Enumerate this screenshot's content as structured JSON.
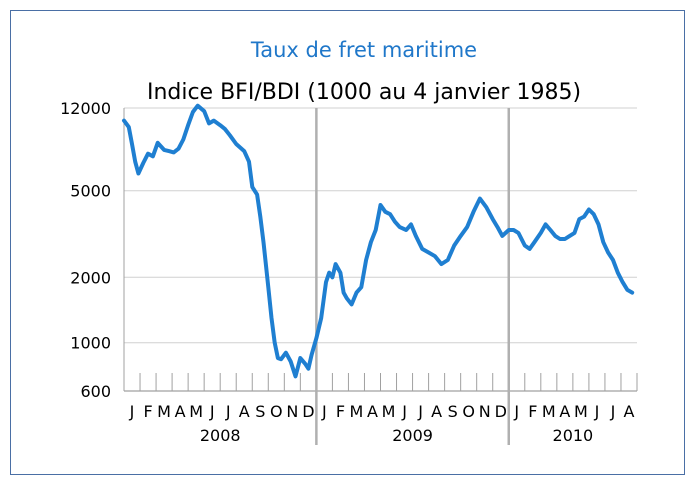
{
  "chart_data": {
    "type": "line",
    "title": "Taux de fret maritime",
    "subtitle": "Indice BFI/BDI (1000 au 4 janvier 1985)",
    "xlabel": "",
    "ylabel": "",
    "y_scale": "log",
    "ylim": [
      600,
      12000
    ],
    "y_ticks": [
      12000,
      5000,
      2000,
      1000,
      600
    ],
    "grid": "horizontal",
    "line_color": "#1f7fd1",
    "month_labels": [
      "J",
      "F",
      "M",
      "A",
      "M",
      "J",
      "J",
      "A",
      "S",
      "O",
      "N",
      "D",
      "J",
      "F",
      "M",
      "A",
      "M",
      "J",
      "J",
      "A",
      "S",
      "O",
      "N",
      "D",
      "J",
      "F",
      "M",
      "A",
      "M",
      "J",
      "J",
      "A"
    ],
    "years": [
      {
        "label": "2008",
        "start_month": 0,
        "months": 12
      },
      {
        "label": "2009",
        "start_month": 12,
        "months": 12
      },
      {
        "label": "2010",
        "start_month": 24,
        "months": 8
      }
    ],
    "series": [
      {
        "name": "",
        "x": [
          0.0,
          0.3,
          0.5,
          0.7,
          0.9,
          1.2,
          1.5,
          1.8,
          2.1,
          2.5,
          2.8,
          3.1,
          3.4,
          3.7,
          4.0,
          4.3,
          4.6,
          5.0,
          5.3,
          5.6,
          6.0,
          6.3,
          6.6,
          7.0,
          7.5,
          7.8,
          8.0,
          8.3,
          8.5,
          8.7,
          9.0,
          9.2,
          9.4,
          9.6,
          9.8,
          10.1,
          10.4,
          10.7,
          11.0,
          11.3,
          11.5,
          11.7,
          12.0,
          12.3,
          12.6,
          12.8,
          13.0,
          13.2,
          13.5,
          13.7,
          13.9,
          14.2,
          14.5,
          14.8,
          15.1,
          15.4,
          15.7,
          16.0,
          16.3,
          16.6,
          16.9,
          17.2,
          17.6,
          17.9,
          18.2,
          18.6,
          19.0,
          19.4,
          19.8,
          20.2,
          20.6,
          21.0,
          21.4,
          21.8,
          22.2,
          22.6,
          23.0,
          23.3,
          23.6,
          24.0,
          24.3,
          24.6,
          25.0,
          25.3,
          25.6,
          26.0,
          26.3,
          26.6,
          26.9,
          27.2,
          27.5,
          27.8,
          28.1,
          28.4,
          28.7,
          29.0,
          29.3,
          29.6,
          29.9,
          30.2,
          30.5,
          30.8,
          31.1,
          31.4,
          31.7
        ],
        "y": [
          10500,
          9800,
          8200,
          6800,
          6000,
          6700,
          7400,
          7200,
          8300,
          7700,
          7600,
          7500,
          7800,
          8600,
          10000,
          11500,
          12300,
          11600,
          10200,
          10500,
          10000,
          9600,
          9000,
          8200,
          7600,
          6800,
          5200,
          4800,
          3800,
          2900,
          1800,
          1300,
          1000,
          850,
          840,
          900,
          820,
          700,
          850,
          800,
          760,
          880,
          1050,
          1300,
          1900,
          2100,
          2000,
          2300,
          2100,
          1700,
          1600,
          1500,
          1700,
          1800,
          2400,
          2900,
          3300,
          4300,
          4000,
          3900,
          3600,
          3400,
          3300,
          3500,
          3100,
          2700,
          2600,
          2500,
          2300,
          2400,
          2800,
          3100,
          3400,
          4000,
          4600,
          4200,
          3700,
          3400,
          3100,
          3300,
          3300,
          3200,
          2800,
          2700,
          2900,
          3200,
          3500,
          3300,
          3100,
          3000,
          3000,
          3100,
          3200,
          3700,
          3800,
          4100,
          3900,
          3500,
          2900,
          2600,
          2400,
          2100,
          1900,
          1750,
          1700
        ]
      }
    ]
  }
}
